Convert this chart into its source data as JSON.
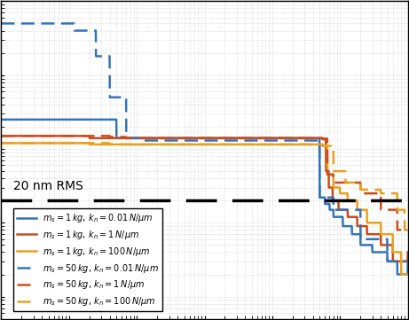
{
  "colors": {
    "blue": "#3573b9",
    "orange": "#cc4b1c",
    "yellow": "#e8a020"
  },
  "hline_value": 2e-08,
  "hline_label": "20 nm RMS",
  "background_color": "#f5f5f5",
  "grid_color": "#cccccc",
  "xlim_log": [
    -3,
    3
  ],
  "ylim_log": [
    -9.3,
    -5.0
  ]
}
